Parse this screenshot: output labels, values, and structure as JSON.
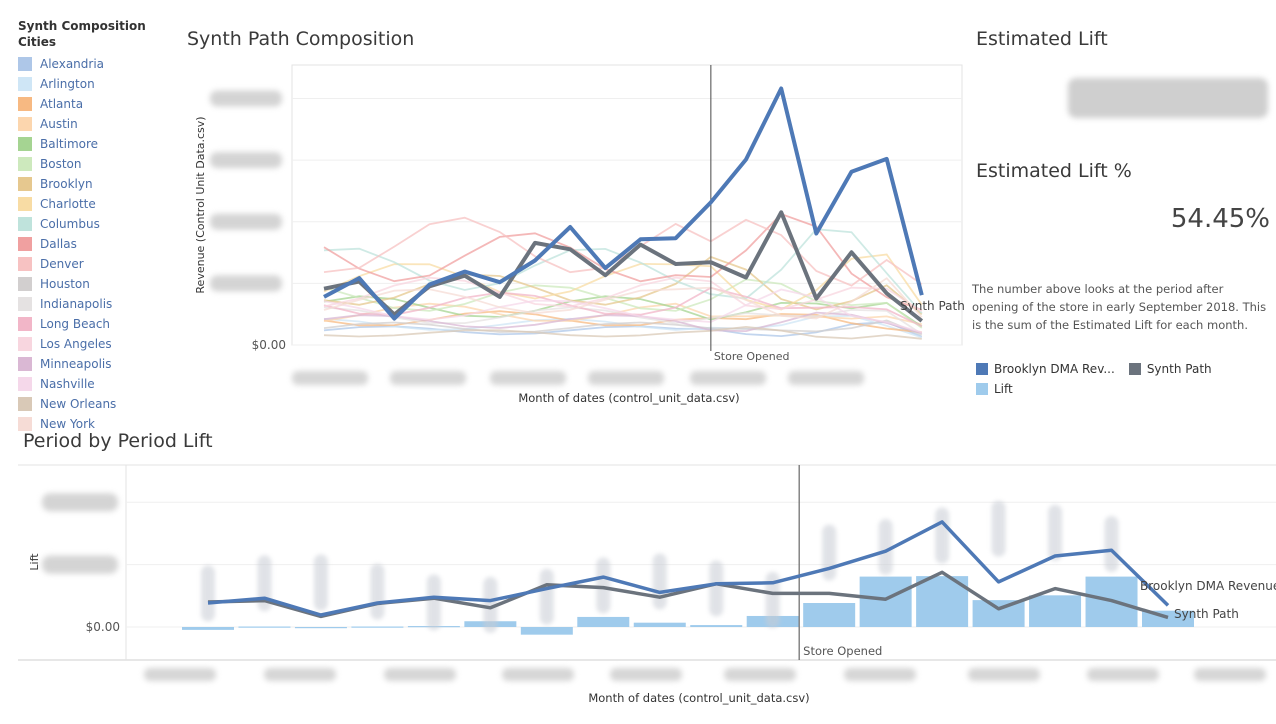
{
  "legend": {
    "title": "Synth Composition Cities",
    "items": [
      {
        "label": "Alexandria",
        "color": "#aec7e8"
      },
      {
        "label": "Arlington",
        "color": "#cfe6f6"
      },
      {
        "label": "Atlanta",
        "color": "#f7b982"
      },
      {
        "label": "Austin",
        "color": "#fcd6ae"
      },
      {
        "label": "Baltimore",
        "color": "#a5d492"
      },
      {
        "label": "Boston",
        "color": "#cde9bd"
      },
      {
        "label": "Brooklyn",
        "color": "#e6c88f"
      },
      {
        "label": "Charlotte",
        "color": "#f8dca4"
      },
      {
        "label": "Columbus",
        "color": "#bfe3dc"
      },
      {
        "label": "Dallas",
        "color": "#f0a0a0"
      },
      {
        "label": "Denver",
        "color": "#f7c2c2"
      },
      {
        "label": "Houston",
        "color": "#d2cfcf"
      },
      {
        "label": "Indianapolis",
        "color": "#e5e2e2"
      },
      {
        "label": "Long Beach",
        "color": "#f2b6c8"
      },
      {
        "label": "Los Angeles",
        "color": "#f8d6df"
      },
      {
        "label": "Minneapolis",
        "color": "#dab8d4"
      },
      {
        "label": "Nashville",
        "color": "#f5d8ea"
      },
      {
        "label": "New Orleans",
        "color": "#d9c9b7"
      },
      {
        "label": "New York",
        "color": "#f6dcd6"
      }
    ]
  },
  "top_chart": {
    "title": "Synth Path Composition",
    "ylabel": "Revenue (Control Unit Data.csv)",
    "xlabel": "Month of dates (control_unit_data.csv)",
    "y_zero_label": "$0.00",
    "store_opened_label": "Store Opened",
    "synth_path_label": "Synth Path"
  },
  "bottom_chart": {
    "title": "Period by Period Lift",
    "ylabel": "Lift",
    "xlabel": "Month of dates (control_unit_data.csv)",
    "y_zero_label": "$0.00",
    "store_opened_label": "Store Opened",
    "brooklyn_label": "Brooklyn DMA Revenue",
    "synth_path_label": "Synth Path"
  },
  "right_panel": {
    "estimated_lift_title": "Estimated Lift",
    "estimated_lift_pct_title": "Estimated Lift %",
    "estimated_lift_pct_value": "54.45%",
    "note": "The number above looks at the period after opening of the store  in early September 2018. This is the sum of the Estimated Lift for each month.",
    "legend": [
      {
        "label": "Brooklyn DMA Rev...",
        "color": "#4e79b6"
      },
      {
        "label": "Synth Path",
        "color": "#6b737d"
      },
      {
        "label": "Lift",
        "color": "#9fcbec"
      }
    ]
  },
  "colors": {
    "brooklyn": "#4e79b6",
    "synth": "#6b737d",
    "lift": "#9fcbec",
    "store_line": "#666666"
  },
  "chart_data": [
    {
      "type": "line",
      "title": "Synth Path Composition",
      "xlabel": "Month of dates (control_unit_data.csv)",
      "ylabel": "Revenue (Control Unit Data.csv)",
      "x_count": 19,
      "store_opened_index": 11,
      "series": [
        {
          "name": "Brooklyn DMA Revenue",
          "values": [
            0.82,
            1.14,
            0.45,
            1.03,
            1.25,
            1.07,
            1.44,
            2.01,
            1.31,
            1.8,
            1.82,
            2.43,
            3.16,
            4.37,
            1.9,
            2.95,
            3.17,
            0.85,
            null
          ]
        },
        {
          "name": "Synth Path",
          "values": [
            0.96,
            1.08,
            0.52,
            1.0,
            1.18,
            0.82,
            1.74,
            1.63,
            1.19,
            1.71,
            1.38,
            1.41,
            1.15,
            2.26,
            0.79,
            1.58,
            0.88,
            0.41,
            null
          ]
        }
      ]
    },
    {
      "type": "bar",
      "title": "Period by Period Lift",
      "xlabel": "Month of dates (control_unit_data.csv)",
      "ylabel": "Lift",
      "x_count": 18,
      "store_opened_index": 11,
      "series": [
        {
          "name": "Lift",
          "values": [
            -0.06,
            0.01,
            -0.01,
            0.01,
            0.02,
            0.12,
            -0.16,
            0.21,
            0.09,
            0.04,
            0.23,
            0.5,
            1.05,
            1.06,
            0.56,
            0.66,
            1.05,
            0.34
          ]
        },
        {
          "name": "Brooklyn DMA Revenue",
          "values": [
            0.5,
            0.6,
            0.25,
            0.5,
            0.62,
            0.55,
            0.8,
            1.04,
            0.72,
            0.9,
            0.92,
            1.22,
            1.58,
            2.19,
            0.94,
            1.48,
            1.6,
            0.45
          ]
        },
        {
          "name": "Synth Path",
          "values": [
            0.52,
            0.55,
            0.22,
            0.49,
            0.6,
            0.4,
            0.88,
            0.82,
            0.62,
            0.9,
            0.7,
            0.7,
            0.58,
            1.14,
            0.38,
            0.8,
            0.55,
            0.2
          ]
        }
      ]
    }
  ]
}
